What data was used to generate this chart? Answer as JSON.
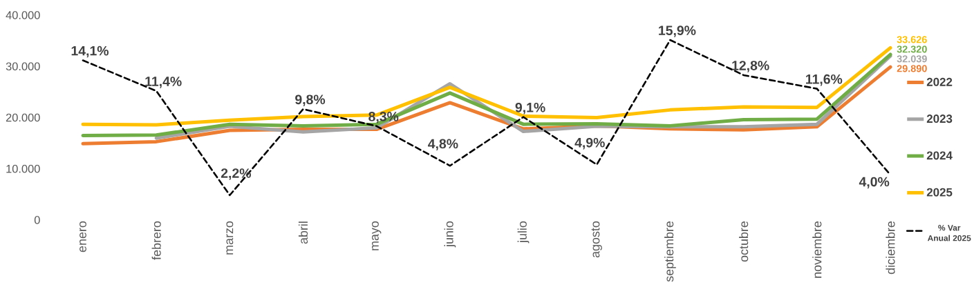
{
  "chart_data": {
    "type": "line",
    "categories": [
      "enero",
      "febrero",
      "marzo",
      "abril",
      "mayo",
      "junio",
      "julio",
      "agosto",
      "septiembre",
      "octubre",
      "noviembre",
      "diciembre"
    ],
    "ylim": [
      0,
      40000
    ],
    "yticks": [
      0,
      {
        "value": 10000,
        "label": "10.000"
      },
      {
        "value": 20000,
        "label": "20.000"
      },
      {
        "value": 30000,
        "label": "30.000"
      },
      {
        "value": 40000,
        "label": "40.000"
      }
    ],
    "legend": "right",
    "marker": "none",
    "series": [
      {
        "name": "2022",
        "color": "#ED7D31",
        "values": [
          14900,
          15300,
          17500,
          17700,
          17700,
          22900,
          17800,
          18400,
          17800,
          17600,
          18200,
          29890
        ],
        "value_labels": [
          null,
          null,
          null,
          null,
          null,
          null,
          null,
          null,
          null,
          null,
          null,
          "29.890"
        ]
      },
      {
        "name": "2023",
        "color": "#A5A5A5",
        "values": [
          null,
          16000,
          18300,
          17200,
          18000,
          26600,
          17300,
          18300,
          18200,
          18200,
          18700,
          32039
        ],
        "value_labels": [
          null,
          null,
          null,
          null,
          null,
          null,
          null,
          null,
          null,
          null,
          null,
          "32.039"
        ]
      },
      {
        "name": "2024",
        "color": "#70AD47",
        "values": [
          16500,
          16600,
          18700,
          18400,
          18700,
          24800,
          18700,
          18800,
          18400,
          19600,
          19700,
          32320
        ],
        "value_labels": [
          null,
          null,
          null,
          null,
          null,
          null,
          null,
          null,
          null,
          null,
          null,
          "32.320"
        ]
      },
      {
        "name": "2025",
        "color": "#FFC000",
        "values": [
          18700,
          18600,
          19500,
          20200,
          20500,
          25900,
          20300,
          20000,
          21500,
          22100,
          22000,
          33626
        ],
        "value_labels": [
          null,
          null,
          null,
          null,
          null,
          null,
          null,
          null,
          null,
          null,
          null,
          "33.626"
        ]
      },
      {
        "name": "% Var Anual 2025",
        "color": "#000000",
        "axis": "y2",
        "line_style": "dashed",
        "values": [
          14.1,
          11.4,
          2.2,
          9.8,
          8.3,
          4.8,
          9.1,
          4.9,
          15.9,
          12.8,
          11.6,
          4.0
        ],
        "value_labels": [
          "14,1%",
          "11,4%",
          "2,2%",
          "9,8%",
          "8,3%",
          "4,8%",
          "9,1%",
          "4,9%",
          "15,9%",
          "12,8%",
          "11,6%",
          "4,0%"
        ]
      }
    ]
  }
}
